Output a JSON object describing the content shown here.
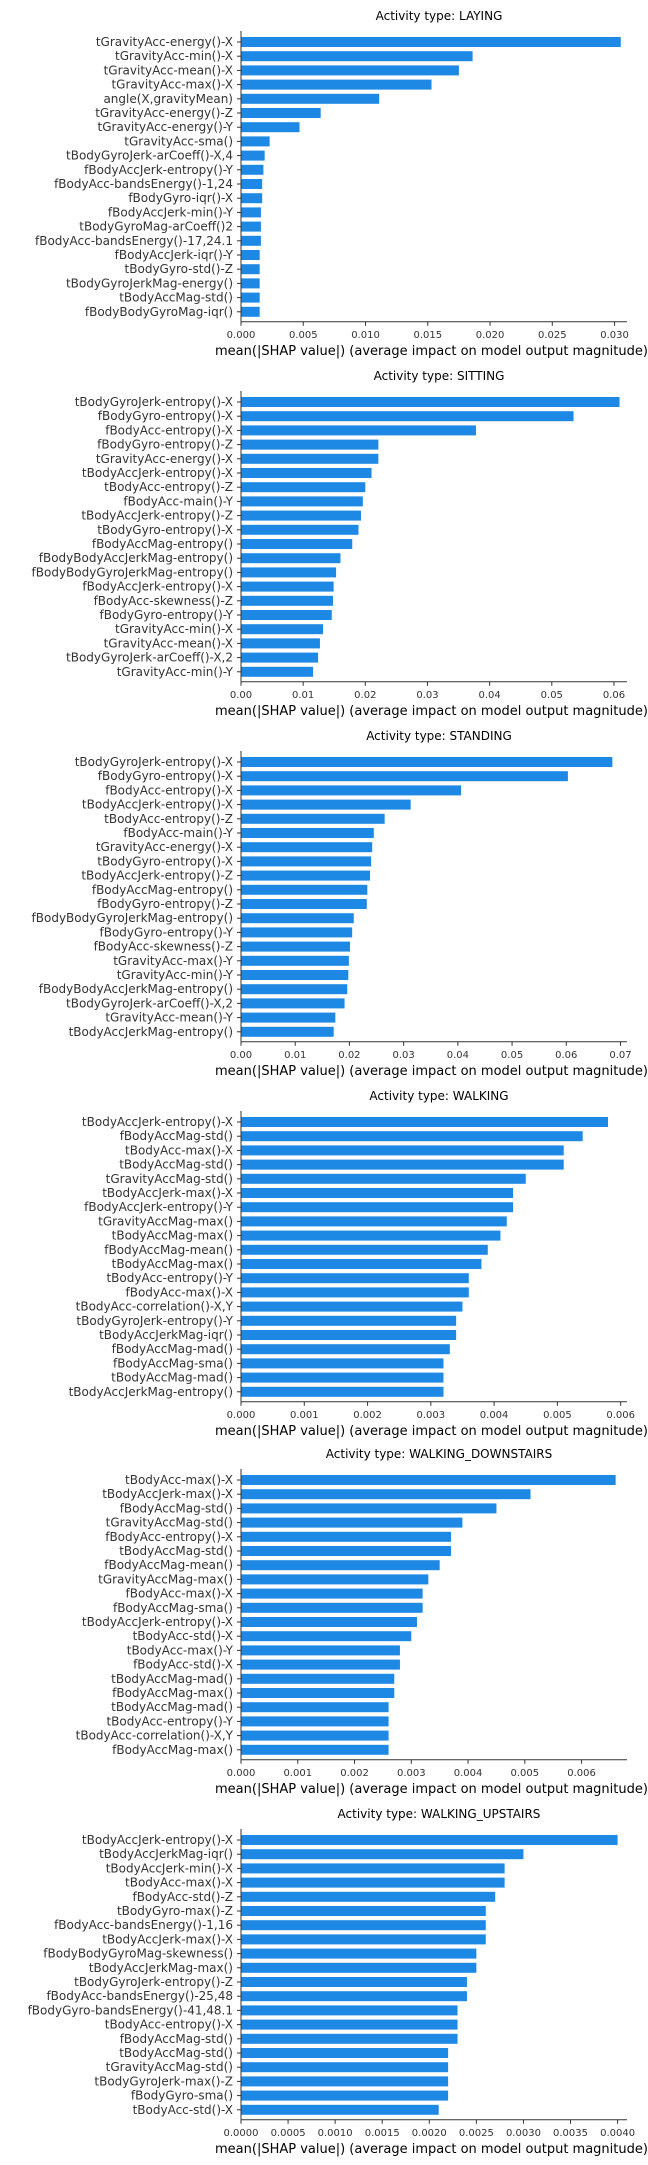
{
  "colors": {
    "bar": "#1e88e5",
    "axis": "#333333",
    "text": "#333333"
  },
  "chart_data": [
    {
      "type": "bar",
      "orientation": "horizontal",
      "title": "Activity type: LAYING",
      "xlabel": "mean(|SHAP value|) (average impact on model output magnitude)",
      "xlim": [
        0,
        0.031
      ],
      "xticks": [
        "0.000",
        "0.005",
        "0.010",
        "0.015",
        "0.020",
        "0.025",
        "0.030"
      ],
      "categories": [
        "tGravityAcc-energy()-X",
        "tGravityAcc-min()-X",
        "tGravityAcc-mean()-X",
        "tGravityAcc-max()-X",
        "angle(X,gravityMean)",
        "tGravityAcc-energy()-Z",
        "tGravityAcc-energy()-Y",
        "tGravityAcc-sma()",
        "tBodyGyroJerk-arCoeff()-X,4",
        "fBodyAccJerk-entropy()-Y",
        "fBodyAcc-bandsEnergy()-1,24",
        "fBodyGyro-iqr()-X",
        "fBodyAccJerk-min()-Y",
        "tBodyGyroMag-arCoeff()2",
        "fBodyAcc-bandsEnergy()-17,24.1",
        "fBodyAccJerk-iqr()-Y",
        "tBodyGyro-std()-Z",
        "tBodyGyroJerkMag-energy()",
        "tBodyAccMag-std()",
        "fBodyBodyGyroMag-iqr()"
      ],
      "values": [
        0.0305,
        0.0186,
        0.0175,
        0.0153,
        0.0111,
        0.0064,
        0.0047,
        0.0023,
        0.0019,
        0.0018,
        0.0017,
        0.0017,
        0.0016,
        0.0016,
        0.0016,
        0.0015,
        0.0015,
        0.0015,
        0.0015,
        0.0015
      ]
    },
    {
      "type": "bar",
      "orientation": "horizontal",
      "title": "Activity type: SITTING",
      "xlabel": "mean(|SHAP value|) (average impact on model output magnitude)",
      "xlim": [
        0,
        0.0621
      ],
      "xticks": [
        "0.00",
        "0.01",
        "0.02",
        "0.03",
        "0.04",
        "0.05",
        "0.06"
      ],
      "categories": [
        "tBodyGyroJerk-entropy()-X",
        "fBodyGyro-entropy()-X",
        "fBodyAcc-entropy()-X",
        "fBodyGyro-entropy()-Z",
        "tGravityAcc-energy()-X",
        "tBodyAccJerk-entropy()-X",
        "tBodyAcc-entropy()-Z",
        "fBodyAcc-main()-Y",
        "tBodyAccJerk-entropy()-Z",
        "tBodyGyro-entropy()-X",
        "fBodyAccMag-entropy()",
        "fBodyBodyAccJerkMag-entropy()",
        "fBodyBodyGyroJerkMag-entropy()",
        "fBodyAccJerk-entropy()-X",
        "fBodyAcc-skewness()-Z",
        "fBodyGyro-entropy()-Y",
        "tGravityAcc-min()-X",
        "tGravityAcc-mean()-X",
        "tBodyGyroJerk-arCoeff()-X,2",
        "tGravityAcc-min()-Y"
      ],
      "values": [
        0.0609,
        0.0535,
        0.0378,
        0.0221,
        0.0221,
        0.021,
        0.02,
        0.0196,
        0.0193,
        0.0189,
        0.0179,
        0.016,
        0.0153,
        0.0149,
        0.0148,
        0.0146,
        0.0132,
        0.0127,
        0.0124,
        0.0116
      ]
    },
    {
      "type": "bar",
      "orientation": "horizontal",
      "title": "Activity type: STANDING",
      "xlabel": "mean(|SHAP value|) (average impact on model output magnitude)",
      "xlim": [
        0,
        0.0712
      ],
      "xticks": [
        "0.00",
        "0.01",
        "0.02",
        "0.03",
        "0.04",
        "0.05",
        "0.06",
        "0.07"
      ],
      "categories": [
        "tBodyGyroJerk-entropy()-X",
        "fBodyGyro-entropy()-X",
        "fBodyAcc-entropy()-X",
        "tBodyAccJerk-entropy()-X",
        "tBodyAcc-entropy()-Z",
        "fBodyAcc-main()-Y",
        "tGravityAcc-energy()-X",
        "tBodyGyro-entropy()-X",
        "tBodyAccJerk-entropy()-Z",
        "fBodyAccMag-entropy()",
        "fBodyGyro-entropy()-Z",
        "fBodyBodyGyroJerkMag-entropy()",
        "fBodyGyro-entropy()-Y",
        "fBodyAcc-skewness()-Z",
        "tGravityAcc-max()-Y",
        "tGravityAcc-min()-Y",
        "fBodyBodyAccJerkMag-entropy()",
        "tBodyGyroJerk-arCoeff()-X,2",
        "tGravityAcc-mean()-Y",
        "tBodyAccJerkMag-entropy()"
      ],
      "values": [
        0.0685,
        0.0603,
        0.0406,
        0.0313,
        0.0265,
        0.0245,
        0.0242,
        0.024,
        0.0238,
        0.0233,
        0.0232,
        0.0208,
        0.0205,
        0.0201,
        0.0199,
        0.0198,
        0.0196,
        0.0191,
        0.0174,
        0.0171
      ]
    },
    {
      "type": "bar",
      "orientation": "horizontal",
      "title": "Activity type: WALKING",
      "xlabel": "mean(|SHAP value|) (average impact on model output magnitude)",
      "xlim": [
        0,
        0.0061
      ],
      "xticks": [
        "0.000",
        "0.001",
        "0.002",
        "0.003",
        "0.004",
        "0.005",
        "0.006"
      ],
      "categories": [
        "tBodyAccJerk-entropy()-X",
        "fBodyAccMag-std()",
        "tBodyAcc-max()-X",
        "tBodyAccMag-std()",
        "tGravityAccMag-std()",
        "tBodyAccJerk-max()-X",
        "fBodyAccJerk-entropy()-Y",
        "tGravityAccMag-max()",
        "tBodyAccMag-max()",
        "fBodyAccMag-mean()",
        "tBodyAccMag-max()",
        "tBodyAcc-entropy()-Y",
        "fBodyAcc-max()-X",
        "tBodyAcc-correlation()-X,Y",
        "tBodyGyroJerk-entropy()-Y",
        "tBodyAccJerkMag-iqr()",
        "fBodyAccMag-mad()",
        "fBodyAccMag-sma()",
        "tBodyAccMag-mad()",
        "tBodyAccJerkMag-entropy()"
      ],
      "values": [
        0.0058,
        0.0054,
        0.0051,
        0.0051,
        0.0045,
        0.0043,
        0.0043,
        0.0042,
        0.0041,
        0.0039,
        0.0038,
        0.0036,
        0.0036,
        0.0035,
        0.0034,
        0.0034,
        0.0033,
        0.0032,
        0.0032,
        0.0032
      ]
    },
    {
      "type": "bar",
      "orientation": "horizontal",
      "title": "Activity type: WALKING_DOWNSTAIRS",
      "xlabel": "mean(|SHAP value|) (average impact on model output magnitude)",
      "xlim": [
        0,
        0.0068
      ],
      "xticks": [
        "0.000",
        "0.001",
        "0.002",
        "0.003",
        "0.004",
        "0.005",
        "0.006"
      ],
      "categories": [
        "tBodyAcc-max()-X",
        "tBodyAccJerk-max()-X",
        "fBodyAccMag-std()",
        "tGravityAccMag-std()",
        "fBodyAcc-entropy()-X",
        "tBodyAccMag-std()",
        "fBodyAccMag-mean()",
        "tGravityAccMag-max()",
        "fBodyAcc-max()-X",
        "fBodyAccMag-sma()",
        "tBodyAccJerk-entropy()-X",
        "tBodyAcc-std()-X",
        "tBodyAcc-max()-Y",
        "fBodyAcc-std()-X",
        "tBodyAccMag-mad()",
        "fBodyAccMag-max()",
        "tBodyAccMag-mad()",
        "tBodyAcc-entropy()-Y",
        "tBodyAcc-correlation()-X,Y",
        "fBodyAccMag-max()"
      ],
      "values": [
        0.0066,
        0.0051,
        0.0045,
        0.0039,
        0.0037,
        0.0037,
        0.0035,
        0.0033,
        0.0032,
        0.0032,
        0.0031,
        0.003,
        0.0028,
        0.0028,
        0.0027,
        0.0027,
        0.0026,
        0.0026,
        0.0026,
        0.0026
      ]
    },
    {
      "type": "bar",
      "orientation": "horizontal",
      "title": "Activity type: WALKING_UPSTAIRS",
      "xlabel": "mean(|SHAP value|) (average impact on model output magnitude)",
      "xlim": [
        0,
        0.0041
      ],
      "xticks": [
        "0.0000",
        "0.0005",
        "0.0010",
        "0.0015",
        "0.0020",
        "0.0025",
        "0.0030",
        "0.0035",
        "0.0040"
      ],
      "categories": [
        "tBodyAccJerk-entropy()-X",
        "tBodyAccJerkMag-iqr()",
        "tBodyAccJerk-min()-X",
        "tBodyAcc-max()-X",
        "fBodyAcc-std()-Z",
        "tBodyGyro-max()-Z",
        "fBodyAcc-bandsEnergy()-1,16",
        "tBodyAccJerk-max()-X",
        "fBodyBodyGyroMag-skewness()",
        "tBodyAccJerkMag-max()",
        "tBodyGyroJerk-entropy()-Z",
        "fBodyAcc-bandsEnergy()-25,48",
        "fBodyGyro-bandsEnergy()-41,48.1",
        "tBodyAcc-entropy()-X",
        "fBodyAccMag-std()",
        "tBodyAccMag-std()",
        "tGravityAccMag-std()",
        "tBodyGyroJerk-max()-Z",
        "fBodyGyro-sma()",
        "tBodyAcc-std()-X"
      ],
      "values": [
        0.004,
        0.003,
        0.0028,
        0.0028,
        0.0027,
        0.0026,
        0.0026,
        0.0026,
        0.0025,
        0.0025,
        0.0024,
        0.0024,
        0.0023,
        0.0023,
        0.0023,
        0.0022,
        0.0022,
        0.0022,
        0.0022,
        0.0021
      ]
    }
  ]
}
